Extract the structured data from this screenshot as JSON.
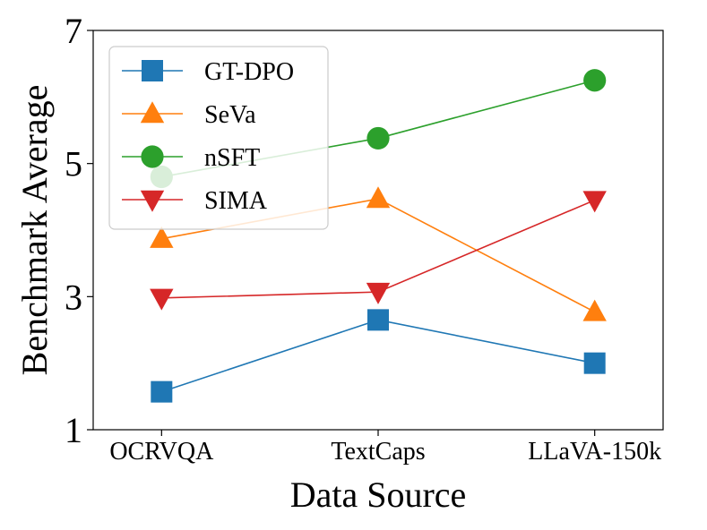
{
  "chart_data": {
    "type": "line",
    "categories": [
      "OCRVQA",
      "TextCaps",
      "LLaVA-150k"
    ],
    "xlabel": "Data Source",
    "ylabel": "Benchmark Average",
    "ylim": [
      1,
      7
    ],
    "yticks": [
      1,
      3,
      5,
      7
    ],
    "grid": false,
    "legend_position": "top-left",
    "series": [
      {
        "name": "GT-DPO",
        "values": [
          1.57,
          2.65,
          2.0
        ],
        "color": "#1f77b4",
        "marker": "square"
      },
      {
        "name": "SeVa",
        "values": [
          3.87,
          4.47,
          2.77
        ],
        "color": "#ff7f0e",
        "marker": "triangle-up"
      },
      {
        "name": "nSFT",
        "values": [
          4.8,
          5.38,
          6.25
        ],
        "color": "#2ca02c",
        "marker": "circle"
      },
      {
        "name": "SIMA",
        "values": [
          2.98,
          3.07,
          4.45
        ],
        "color": "#d62728",
        "marker": "triangle-down"
      }
    ]
  }
}
